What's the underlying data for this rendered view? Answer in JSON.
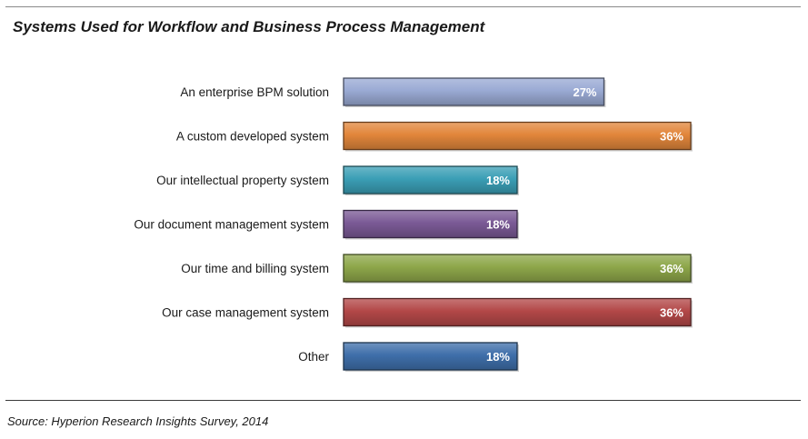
{
  "chart_data": {
    "type": "bar",
    "orientation": "horizontal",
    "title": "Systems Used for Workflow and Business Process Management",
    "categories": [
      "An enterprise BPM solution",
      "A custom developed system",
      "Our intellectual property system",
      "Our document management system",
      "Our time and billing system",
      "Our case management system",
      "Other"
    ],
    "values": [
      27,
      36,
      18,
      18,
      36,
      36,
      18
    ],
    "value_labels": [
      "27%",
      "36%",
      "18%",
      "18%",
      "36%",
      "36%",
      "18%"
    ],
    "unit": "%",
    "colors": [
      "#9aaad4",
      "#e2863b",
      "#3b9fb6",
      "#7b5a96",
      "#8ea74a",
      "#b34848",
      "#3f6faa"
    ],
    "xlim": [
      0,
      36
    ],
    "grid": false,
    "legend": "none"
  },
  "source": "Source: Hyperion Research Insights Survey, 2014"
}
